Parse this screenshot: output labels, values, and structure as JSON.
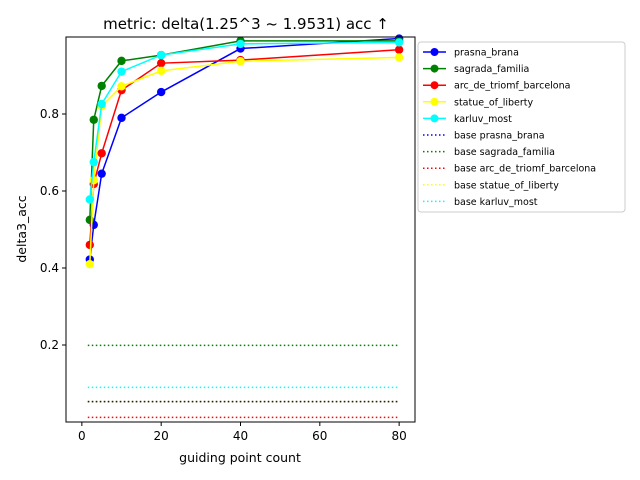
{
  "chart_data": {
    "type": "line",
    "title": "metric: delta(1.25^3 ~ 1.9531) acc ↑",
    "xlabel": "guiding point count",
    "ylabel": "delta3_acc",
    "xlim": [
      -4,
      84
    ],
    "ylim": [
      0.0,
      1.0
    ],
    "xticks": [
      0,
      20,
      40,
      60,
      80
    ],
    "yticks": [
      0.2,
      0.4,
      0.6,
      0.8
    ],
    "x": [
      2,
      3,
      5,
      10,
      20,
      40,
      80
    ],
    "grid": false,
    "legend_position": "outside right, top",
    "series": [
      {
        "name": "prasna_brana",
        "color": "#0000ff",
        "style": "solid-marker",
        "values": [
          0.422,
          0.512,
          0.645,
          0.79,
          0.857,
          0.97,
          0.996
        ]
      },
      {
        "name": "sagrada_familia",
        "color": "#008000",
        "style": "solid-marker",
        "values": [
          0.525,
          0.785,
          0.873,
          0.938,
          0.953,
          0.99,
          0.99
        ]
      },
      {
        "name": "arc_de_triomf_barcelona",
        "color": "#ff0000",
        "style": "solid-marker",
        "values": [
          0.46,
          0.618,
          0.698,
          0.862,
          0.932,
          0.94,
          0.967
        ]
      },
      {
        "name": "statue_of_liberty",
        "color": "#ffff00",
        "style": "solid-marker",
        "values": [
          0.41,
          0.628,
          0.82,
          0.872,
          0.912,
          0.937,
          0.947
        ]
      },
      {
        "name": "karluv_most",
        "color": "#00ffff",
        "style": "solid-marker",
        "values": [
          0.578,
          0.675,
          0.826,
          0.91,
          0.953,
          0.982,
          0.986
        ]
      },
      {
        "name": "base prasna_brana",
        "color": "#0000ff",
        "style": "dotted",
        "values": [
          0.053,
          0.053,
          0.053,
          0.053,
          0.053,
          0.053,
          0.053
        ]
      },
      {
        "name": "base sagrada_familia",
        "color": "#008000",
        "style": "dotted",
        "values": [
          0.199,
          0.199,
          0.199,
          0.199,
          0.199,
          0.199,
          0.199
        ]
      },
      {
        "name": "base arc_de_triomf_barcelona",
        "color": "#ff0000",
        "style": "dotted",
        "values": [
          0.012,
          0.012,
          0.012,
          0.012,
          0.012,
          0.012,
          0.012
        ]
      },
      {
        "name": "base statue_of_liberty",
        "color": "#ffff00",
        "style": "dotted",
        "values": [
          0.053,
          0.053,
          0.053,
          0.053,
          0.053,
          0.053,
          0.053
        ]
      },
      {
        "name": "base karluv_most",
        "color": "#00ffff",
        "style": "dotted",
        "values": [
          0.09,
          0.09,
          0.09,
          0.09,
          0.09,
          0.09,
          0.09
        ]
      }
    ]
  }
}
